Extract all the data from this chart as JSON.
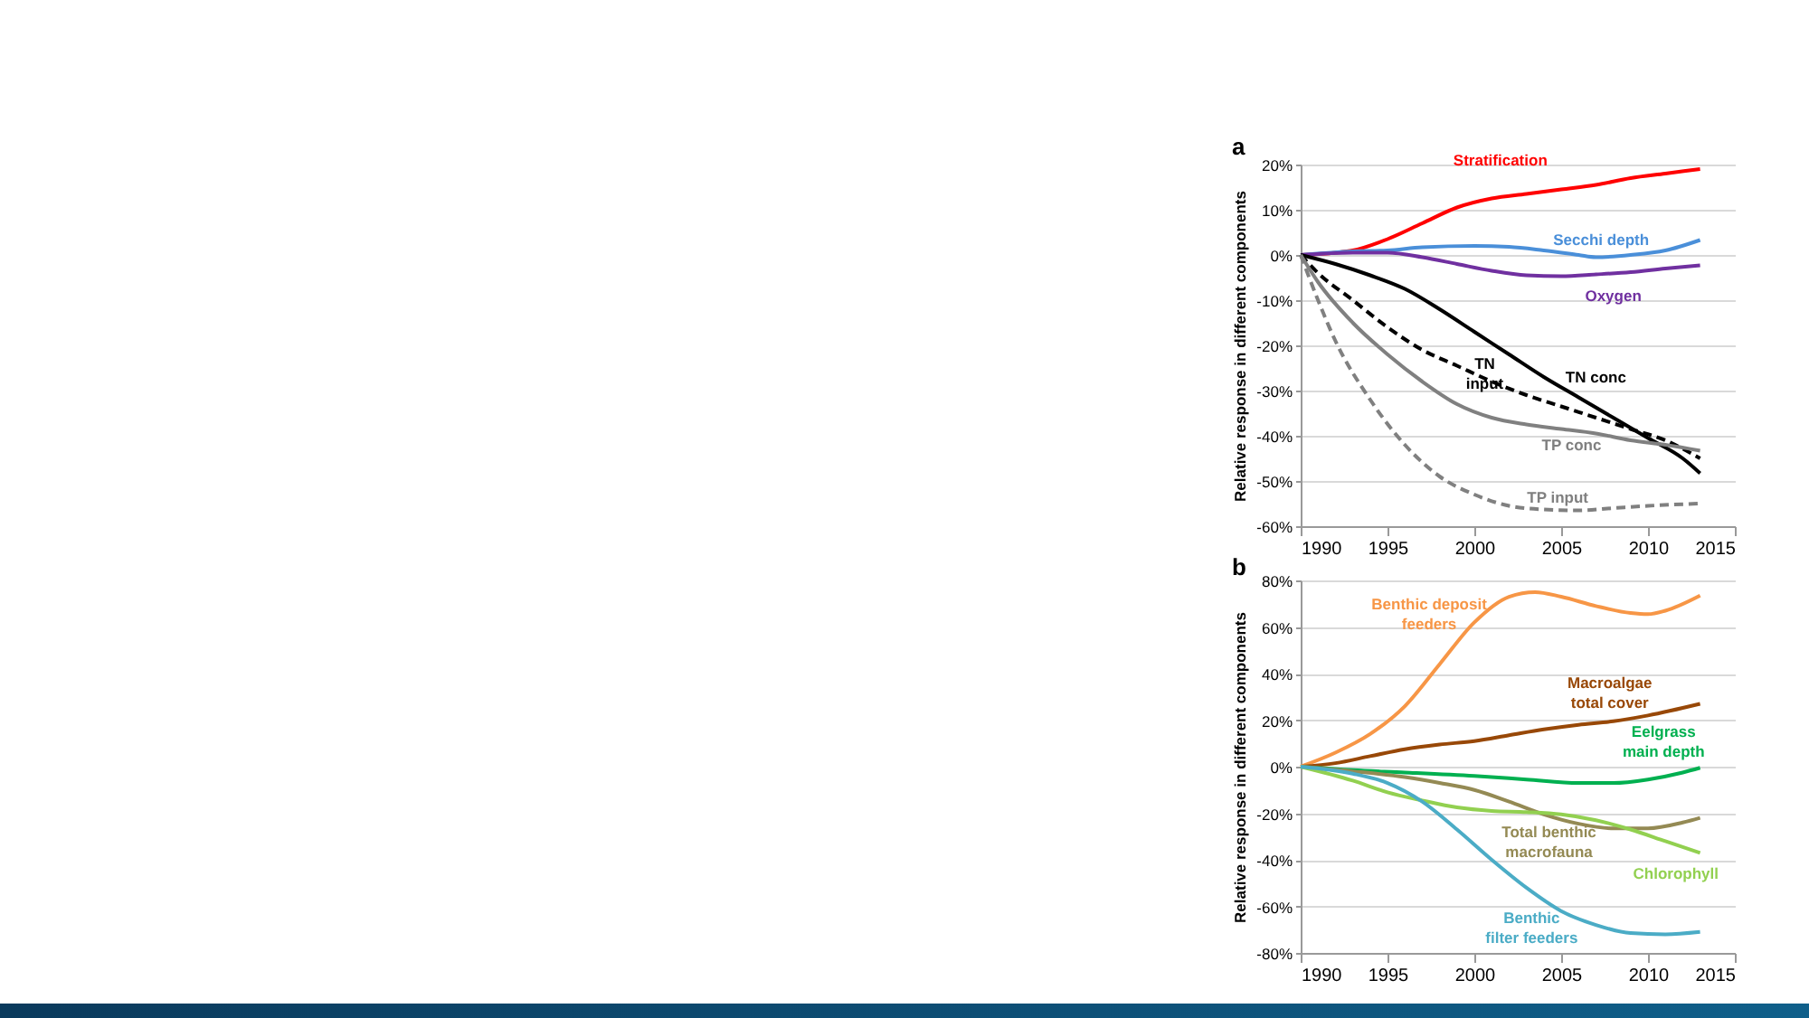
{
  "chart_data": [
    {
      "type": "line",
      "title": "a",
      "ylabel": "Relative response in different components",
      "xlim": [
        1990,
        2015
      ],
      "xticks": [
        1990,
        1995,
        2000,
        2005,
        2010,
        2015
      ],
      "ylim": [
        -60,
        20
      ],
      "yticks": [
        {
          "value": 20,
          "label": "20%"
        },
        {
          "value": 10,
          "label": "10%"
        },
        {
          "value": 0,
          "label": "0%"
        },
        {
          "value": -10,
          "label": "-10%"
        },
        {
          "value": -20,
          "label": "-20%"
        },
        {
          "value": -30,
          "label": "-30%"
        },
        {
          "value": -40,
          "label": "-40%"
        },
        {
          "value": -50,
          "label": "-50%"
        },
        {
          "value": -60,
          "label": "-60%"
        }
      ],
      "grid": "y",
      "series": [
        {
          "name": "Stratification",
          "color": "#ff0000",
          "x": [
            1990,
            1992,
            1993,
            1995,
            1997,
            1999,
            2001,
            2003,
            2005,
            2007,
            2009,
            2011,
            2013
          ],
          "values": [
            0,
            0.5,
            1,
            3.5,
            7,
            10.5,
            12.5,
            13.5,
            14.5,
            15.5,
            17,
            18,
            19
          ]
        },
        {
          "name": "Secchi depth",
          "color": "#4a8fd9",
          "x": [
            1990,
            1993,
            1995,
            1997,
            2000,
            2002,
            2004,
            2006,
            2007,
            2009,
            2011,
            2013
          ],
          "values": [
            0,
            0.8,
            1,
            1.7,
            2,
            1.8,
            1,
            0,
            -0.5,
            0,
            1,
            3.3
          ]
        },
        {
          "name": "Oxygen",
          "color": "#7030a0",
          "x": [
            1990,
            1993,
            1995,
            1997,
            1999,
            2001,
            2003,
            2005,
            2007,
            2009,
            2011,
            2013
          ],
          "values": [
            0,
            0.5,
            0.5,
            -0.5,
            -2,
            -3.5,
            -4.5,
            -4.7,
            -4.3,
            -3.8,
            -3,
            -2.3
          ]
        },
        {
          "name": "TN conc",
          "color": "#000000",
          "x": [
            1990,
            1992,
            1994,
            1996,
            1998,
            2000,
            2002,
            2004,
            2006,
            2008,
            2010,
            2012,
            2013
          ],
          "values": [
            0,
            -2,
            -4.5,
            -7.5,
            -12,
            -17,
            -22,
            -27,
            -31.5,
            -36,
            -40.5,
            -45,
            -48.3
          ]
        },
        {
          "name": "TN input",
          "color": "#000000",
          "line_style": "dashed",
          "x": [
            1990,
            1991,
            1993,
            1995,
            1997,
            1999,
            2001,
            2003,
            2005,
            2007,
            2009,
            2011,
            2013
          ],
          "values": [
            0,
            -4,
            -10,
            -16,
            -21,
            -24.5,
            -28,
            -31,
            -33.5,
            -36,
            -38.5,
            -41,
            -45
          ]
        },
        {
          "name": "TP conc",
          "color": "#808080",
          "x": [
            1990,
            1991,
            1993,
            1995,
            1997,
            1999,
            2001,
            2003,
            2005,
            2007,
            2009,
            2011,
            2013
          ],
          "values": [
            0,
            -6,
            -15,
            -22,
            -28,
            -33,
            -36,
            -37.5,
            -38.5,
            -39.5,
            -41,
            -42,
            -43.3
          ]
        },
        {
          "name": "TP input",
          "color": "#808080",
          "line_style": "dashed",
          "x": [
            1990,
            1991,
            1992,
            1994,
            1996,
            1998,
            2000,
            2002,
            2004,
            2006,
            2008,
            2010,
            2013
          ],
          "values": [
            0,
            -10,
            -19,
            -32,
            -42,
            -49,
            -53,
            -55.5,
            -56.3,
            -56.5,
            -56,
            -55.5,
            -55
          ]
        }
      ]
    },
    {
      "type": "line",
      "title": "b",
      "ylabel": "Relative response in different components",
      "xlim": [
        1990,
        2015
      ],
      "xticks": [
        1990,
        1995,
        2000,
        2005,
        2010,
        2015
      ],
      "ylim": [
        -80,
        80
      ],
      "yticks": [
        {
          "value": 80,
          "label": "80%"
        },
        {
          "value": 60,
          "label": "60%"
        },
        {
          "value": 40,
          "label": "40%"
        },
        {
          "value": 20,
          "label": "20%"
        },
        {
          "value": 0,
          "label": "0%"
        },
        {
          "value": -20,
          "label": "-20%"
        },
        {
          "value": -40,
          "label": "-40%"
        },
        {
          "value": -60,
          "label": "-60%"
        },
        {
          "value": -80,
          "label": "-80%"
        }
      ],
      "grid": "y",
      "series": [
        {
          "name": "Benthic deposit feeders",
          "color": "#f79646",
          "x": [
            1990,
            1992,
            1994,
            1996,
            1998,
            2000,
            2002,
            2003.5,
            2005,
            2007,
            2009,
            2010,
            2011,
            2013
          ],
          "values": [
            0,
            6,
            14,
            26,
            44,
            62,
            73,
            75,
            73,
            69,
            66,
            65.5,
            67,
            73.5
          ]
        },
        {
          "name": "Macroalgae total cover",
          "color": "#984807",
          "x": [
            1990,
            1992,
            1994,
            1996,
            1998,
            2000,
            2002,
            2004,
            2006,
            2008,
            2010,
            2013
          ],
          "values": [
            0,
            1.5,
            4.5,
            7.5,
            9.5,
            11,
            13.5,
            16,
            18,
            19.5,
            22,
            27
          ]
        },
        {
          "name": "Eelgrass main depth",
          "color": "#00b050",
          "x": [
            1990,
            1993,
            1996,
            2000,
            2003,
            2006,
            2008,
            2010,
            2012,
            2013
          ],
          "values": [
            0,
            -1.5,
            -2.5,
            -4,
            -5.5,
            -7,
            -7,
            -5.5,
            -2.5,
            -0.5
          ]
        },
        {
          "name": "Total benthic macrofauna",
          "color": "#948a54",
          "x": [
            1990,
            1993,
            1996,
            1998,
            2000,
            2002,
            2004,
            2006,
            2008,
            2010,
            2012,
            2013
          ],
          "values": [
            0,
            -2,
            -4.5,
            -7,
            -10,
            -15,
            -20.5,
            -24.5,
            -26.5,
            -26.5,
            -24,
            -22
          ]
        },
        {
          "name": "Chlorophyll",
          "color": "#92d050",
          "x": [
            1990,
            1993,
            1995,
            1997,
            1999,
            2001,
            2003,
            2005,
            2007,
            2009,
            2011,
            2013
          ],
          "values": [
            0,
            -6,
            -11,
            -14.5,
            -17.5,
            -19,
            -19.5,
            -20.5,
            -23,
            -27,
            -32,
            -37
          ]
        },
        {
          "name": "Benthic filter feeders",
          "color": "#4bacc6",
          "x": [
            1990,
            1993,
            1995,
            1997,
            1999,
            2001,
            2003,
            2005,
            2007,
            2009,
            2011,
            2013
          ],
          "values": [
            0,
            -3,
            -7,
            -15,
            -27,
            -40,
            -52,
            -62,
            -68,
            -71.5,
            -72,
            -71
          ]
        }
      ]
    }
  ]
}
